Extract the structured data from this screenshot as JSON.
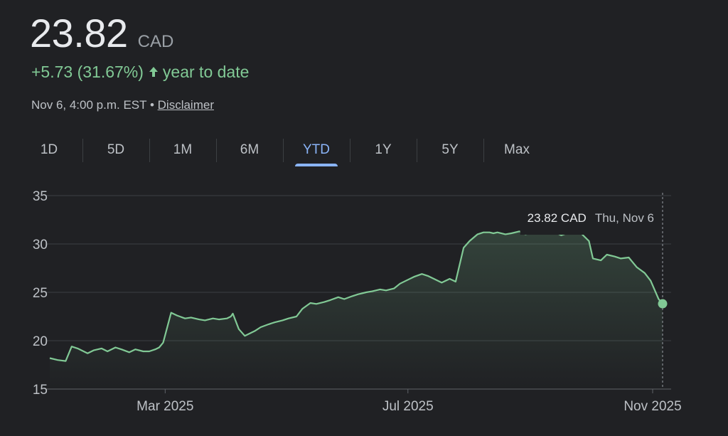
{
  "quote": {
    "price": "23.82",
    "currency": "CAD",
    "change": "+5.73 (31.67%)",
    "period_label": "year to date",
    "timestamp": "Nov 6, 4:00 p.m. EST",
    "separator": "•",
    "disclaimer": "Disclaimer"
  },
  "colors": {
    "positive": "#81c995",
    "accent": "#8ab4f8",
    "background": "#202124"
  },
  "tabs": [
    {
      "label": "1D"
    },
    {
      "label": "5D"
    },
    {
      "label": "1M"
    },
    {
      "label": "6M"
    },
    {
      "label": "YTD",
      "active": true
    },
    {
      "label": "1Y"
    },
    {
      "label": "5Y"
    },
    {
      "label": "Max"
    }
  ],
  "tooltip": {
    "value": "23.82 CAD",
    "date": "Thu, Nov 6"
  },
  "chart_data": {
    "type": "area",
    "ylim": [
      15,
      35
    ],
    "yticks": [
      15,
      20,
      25,
      30,
      35
    ],
    "xticks": [
      {
        "label": "Mar 2025",
        "date": "2025-03-01"
      },
      {
        "label": "Jul 2025",
        "date": "2025-07-01"
      },
      {
        "label": "Nov 2025",
        "date": "2025-11-01"
      }
    ],
    "grid": true,
    "x": [
      "2025-01-02",
      "2025-01-06",
      "2025-01-10",
      "2025-01-13",
      "2025-01-16",
      "2025-01-21",
      "2025-01-24",
      "2025-01-28",
      "2025-01-31",
      "2025-02-04",
      "2025-02-07",
      "2025-02-11",
      "2025-02-14",
      "2025-02-18",
      "2025-02-21",
      "2025-02-24",
      "2025-02-26",
      "2025-02-28",
      "2025-03-04",
      "2025-03-07",
      "2025-03-11",
      "2025-03-14",
      "2025-03-18",
      "2025-03-21",
      "2025-03-25",
      "2025-03-28",
      "2025-04-01",
      "2025-04-03",
      "2025-04-04",
      "2025-04-07",
      "2025-04-10",
      "2025-04-15",
      "2025-04-18",
      "2025-04-22",
      "2025-04-25",
      "2025-04-29",
      "2025-05-02",
      "2025-05-06",
      "2025-05-09",
      "2025-05-13",
      "2025-05-16",
      "2025-05-20",
      "2025-05-23",
      "2025-05-27",
      "2025-05-30",
      "2025-06-03",
      "2025-06-06",
      "2025-06-10",
      "2025-06-13",
      "2025-06-17",
      "2025-06-20",
      "2025-06-24",
      "2025-06-27",
      "2025-07-01",
      "2025-07-04",
      "2025-07-08",
      "2025-07-11",
      "2025-07-15",
      "2025-07-18",
      "2025-07-22",
      "2025-07-25",
      "2025-07-29",
      "2025-08-01",
      "2025-08-05",
      "2025-08-08",
      "2025-08-11",
      "2025-08-13",
      "2025-08-15",
      "2025-08-19",
      "2025-08-22",
      "2025-08-26",
      "2025-08-29",
      "2025-09-03",
      "2025-09-08",
      "2025-09-12",
      "2025-09-16",
      "2025-09-19",
      "2025-09-24",
      "2025-09-26",
      "2025-09-30",
      "2025-10-02",
      "2025-10-06",
      "2025-10-09",
      "2025-10-13",
      "2025-10-16",
      "2025-10-20",
      "2025-10-24",
      "2025-10-28",
      "2025-10-31",
      "2025-11-04",
      "2025-11-06"
    ],
    "series": [
      {
        "values": [
          18.2,
          18.0,
          17.9,
          19.4,
          19.2,
          18.7,
          19.0,
          19.2,
          18.9,
          19.3,
          19.1,
          18.8,
          19.1,
          18.9,
          18.9,
          19.1,
          19.3,
          19.8,
          22.9,
          22.6,
          22.3,
          22.4,
          22.2,
          22.1,
          22.3,
          22.2,
          22.3,
          22.5,
          22.8,
          21.2,
          20.5,
          21.0,
          21.4,
          21.7,
          21.9,
          22.1,
          22.3,
          22.5,
          23.3,
          23.9,
          23.8,
          24.0,
          24.2,
          24.5,
          24.3,
          24.6,
          24.8,
          25.0,
          25.1,
          25.3,
          25.2,
          25.4,
          25.9,
          26.3,
          26.6,
          26.9,
          26.7,
          26.3,
          26.0,
          26.4,
          26.1,
          29.6,
          30.3,
          31.0,
          31.2,
          31.2,
          31.1,
          31.2,
          31.0,
          31.1,
          31.3,
          31.0,
          31.2,
          31.1,
          31.3,
          30.9,
          31.1,
          31.2,
          31.1,
          30.3,
          28.5,
          28.3,
          28.9,
          28.7,
          28.5,
          28.6,
          27.6,
          27.0,
          26.2,
          24.3,
          23.82
        ]
      }
    ]
  }
}
